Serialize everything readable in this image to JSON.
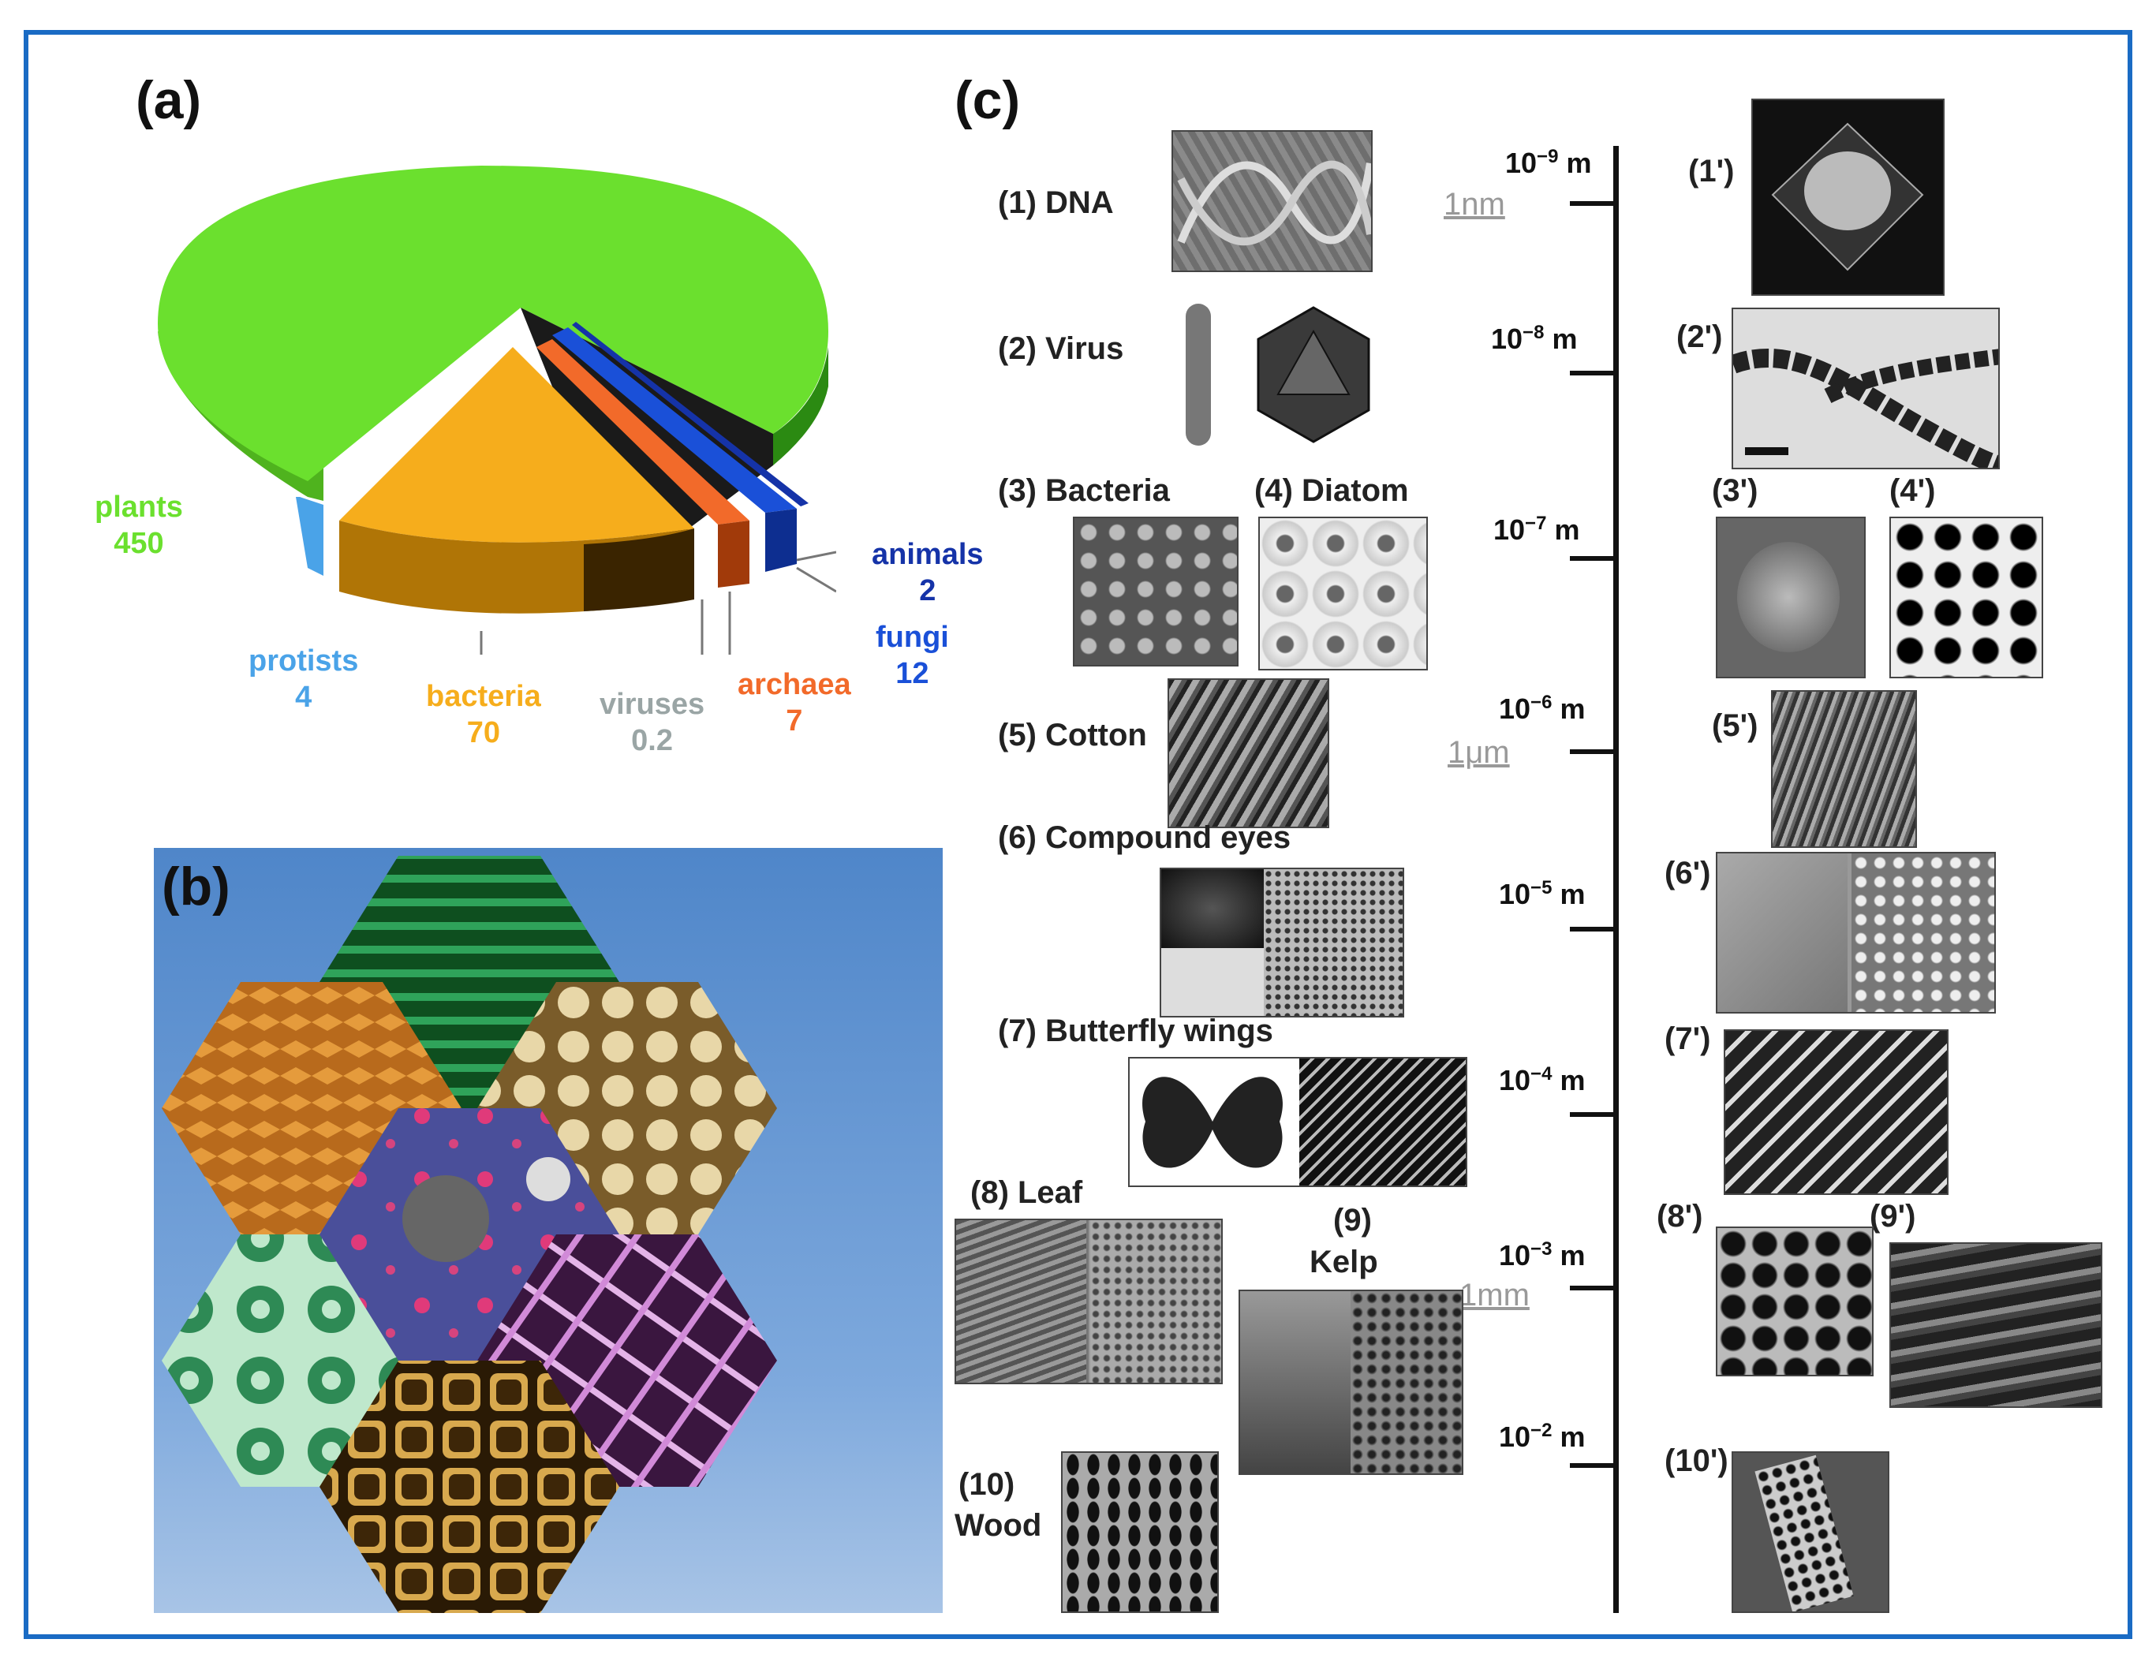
{
  "panels": {
    "a": "(a)",
    "b": "(b)",
    "c": "(c)"
  },
  "pie": {
    "slices": [
      {
        "name": "plants",
        "value": "450",
        "color": "#6be02e"
      },
      {
        "name": "protists",
        "value": "4",
        "color": "#4aa3e8"
      },
      {
        "name": "bacteria",
        "value": "70",
        "color": "#f6ad1c"
      },
      {
        "name": "viruses",
        "value": "0.2",
        "color": "#9aa5a5"
      },
      {
        "name": "archaea",
        "value": "7",
        "color": "#f26a2a"
      },
      {
        "name": "fungi",
        "value": "12",
        "color": "#1a50d8"
      },
      {
        "name": "animals",
        "value": "2",
        "color": "#1533a8"
      }
    ]
  },
  "organisms": {
    "dna": "(1) DNA",
    "virus": "(2) Virus",
    "bacteria": "(3) Bacteria",
    "diatom": "(4) Diatom",
    "cotton": "(5) Cotton",
    "eyes": "(6) Compound eyes",
    "butterfly": "(7) Butterfly wings",
    "leaf": "(8) Leaf",
    "kelp_num": "(9)",
    "kelp": "Kelp",
    "wood_num": "(10)",
    "wood": "Wood"
  },
  "micro_labels": [
    "(1')",
    "(2')",
    "(3')",
    "(4')",
    "(5')",
    "(6')",
    "(7')",
    "(8')",
    "(9')",
    "(10')"
  ],
  "scale": {
    "unit": "m",
    "exponents": [
      "−9",
      "−8",
      "−7",
      "−6",
      "−5",
      "−4",
      "−3",
      "−2"
    ],
    "nm": "1nm",
    "um": "1μm",
    "mm": "1mm"
  }
}
